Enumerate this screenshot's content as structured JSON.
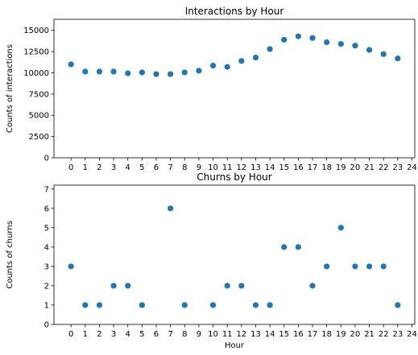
{
  "chart_data": [
    {
      "type": "scatter",
      "title": "Interactions by Hour",
      "xlabel": "",
      "ylabel": "Counts of interactions",
      "xlim": [
        -1.2,
        24.2
      ],
      "ylim": [
        0,
        16300
      ],
      "xticks": [
        0,
        1,
        2,
        3,
        4,
        5,
        6,
        7,
        8,
        9,
        10,
        11,
        12,
        13,
        14,
        15,
        16,
        17,
        18,
        19,
        20,
        21,
        22,
        23,
        24
      ],
      "yticks": [
        0,
        2500,
        5000,
        7500,
        10000,
        12500,
        15000
      ],
      "grid": false,
      "legend": "none",
      "color": "#1f77b4",
      "x": [
        0,
        1,
        2,
        3,
        4,
        5,
        6,
        7,
        8,
        9,
        10,
        11,
        12,
        13,
        14,
        15,
        16,
        17,
        18,
        19,
        20,
        21,
        22,
        23
      ],
      "y": [
        11000,
        10150,
        10150,
        10150,
        9950,
        10050,
        9850,
        9850,
        10050,
        10250,
        10850,
        10700,
        11400,
        11800,
        12800,
        13900,
        14300,
        14100,
        13600,
        13400,
        13200,
        12700,
        12200,
        11700
      ]
    },
    {
      "type": "scatter",
      "title": "Churns by Hour",
      "xlabel": "Hour",
      "ylabel": "Counts of churns",
      "xlim": [
        -1.2,
        24.2
      ],
      "ylim": [
        0,
        7.2
      ],
      "xticks": [
        0,
        1,
        2,
        3,
        4,
        5,
        6,
        7,
        8,
        9,
        10,
        11,
        12,
        13,
        14,
        15,
        16,
        17,
        18,
        19,
        20,
        21,
        22,
        23,
        24
      ],
      "yticks": [
        0,
        1,
        2,
        3,
        4,
        5,
        6,
        7
      ],
      "grid": false,
      "legend": "none",
      "color": "#1f77b4",
      "x": [
        0,
        1,
        2,
        3,
        4,
        5,
        7,
        8,
        10,
        11,
        12,
        13,
        14,
        15,
        16,
        17,
        18,
        19,
        20,
        21,
        22,
        23
      ],
      "y": [
        3,
        1,
        1,
        2,
        2,
        1,
        6,
        1,
        1,
        2,
        2,
        1,
        1,
        4,
        4,
        2,
        3,
        5,
        3,
        3,
        3,
        1
      ]
    }
  ]
}
